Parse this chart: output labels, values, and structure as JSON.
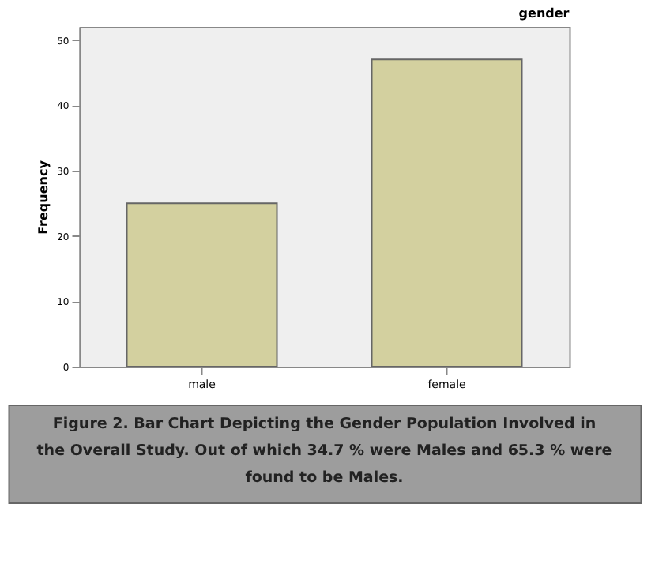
{
  "chart_data": {
    "type": "bar",
    "title": "gender",
    "ylabel": "Frequency",
    "categories": [
      "male",
      "female"
    ],
    "values": [
      25,
      47
    ],
    "color": "#d3d09f",
    "ylim": [
      0,
      52
    ],
    "yticks": [
      0,
      10,
      20,
      30,
      40,
      50
    ],
    "grid": false,
    "annotations": [
      "Figure 2. Bar Chart Depicting the Gender Population Involved in the Overall Study. Out of which 34.7 % were Males and 65.3 % were found to be Males."
    ]
  }
}
